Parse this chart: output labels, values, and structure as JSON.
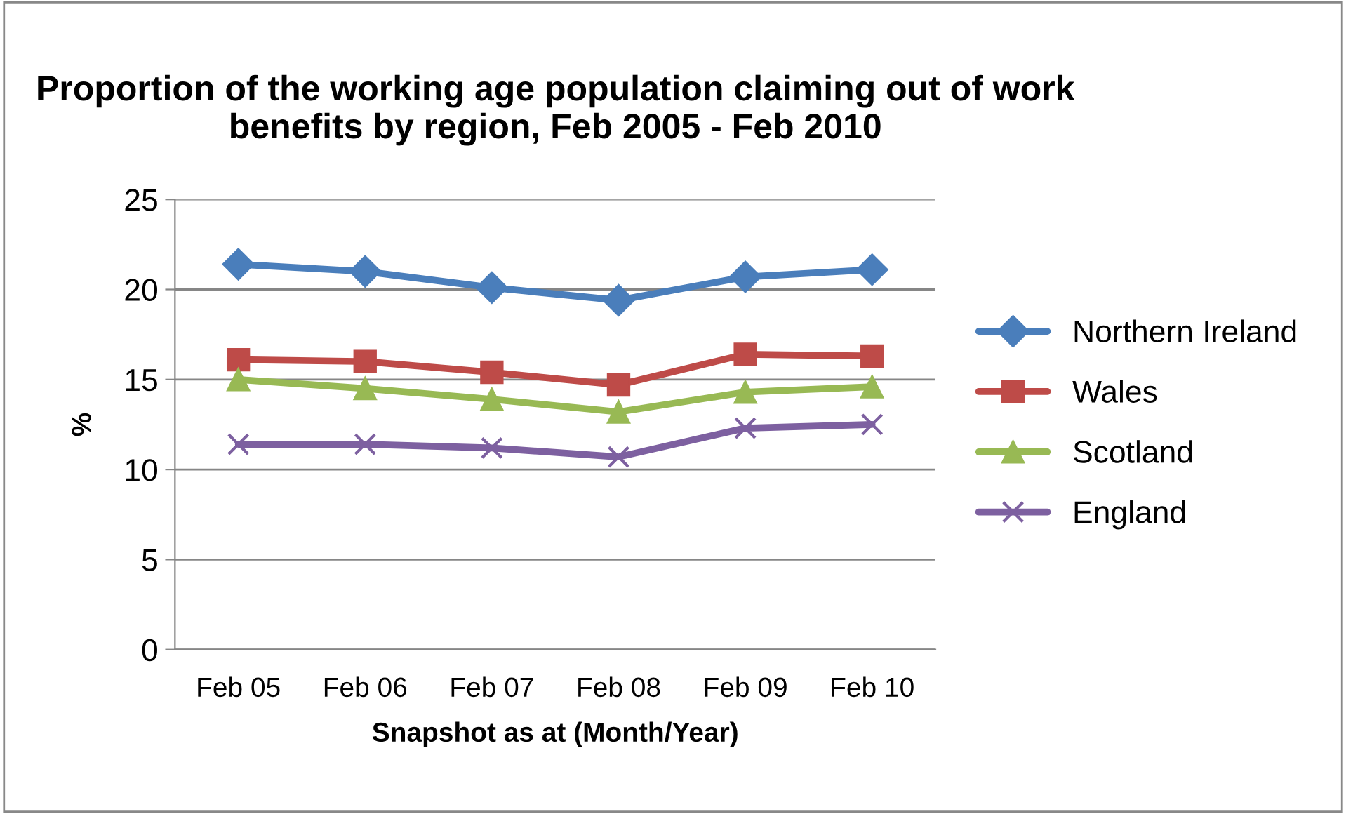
{
  "chart_data": {
    "type": "line",
    "title": "Proportion of the working age population claiming out of work benefits by region, Feb 2005 - Feb 2010",
    "xlabel": "Snapshot as at (Month/Year)",
    "ylabel": "%",
    "categories": [
      "Feb 05",
      "Feb 06",
      "Feb 07",
      "Feb 08",
      "Feb 09",
      "Feb 10"
    ],
    "series": [
      {
        "name": "Northern Ireland",
        "color": "#4a7ebb",
        "marker": "diamond",
        "values": [
          21.4,
          21.0,
          20.1,
          19.4,
          20.7,
          21.1
        ]
      },
      {
        "name": "Wales",
        "color": "#be4b48",
        "marker": "square",
        "values": [
          16.1,
          16.0,
          15.4,
          14.7,
          16.4,
          16.3
        ]
      },
      {
        "name": "Scotland",
        "color": "#98b954",
        "marker": "triangle",
        "values": [
          15.0,
          14.5,
          13.9,
          13.2,
          14.3,
          14.6
        ]
      },
      {
        "name": "England",
        "color": "#7d60a0",
        "marker": "cross",
        "values": [
          11.4,
          11.4,
          11.2,
          10.7,
          12.3,
          12.5
        ]
      }
    ],
    "ylim": [
      0,
      25
    ],
    "yticks": [
      0,
      5,
      10,
      15,
      20,
      25
    ],
    "grid": "y",
    "legend": "right",
    "line_style": "solid"
  }
}
